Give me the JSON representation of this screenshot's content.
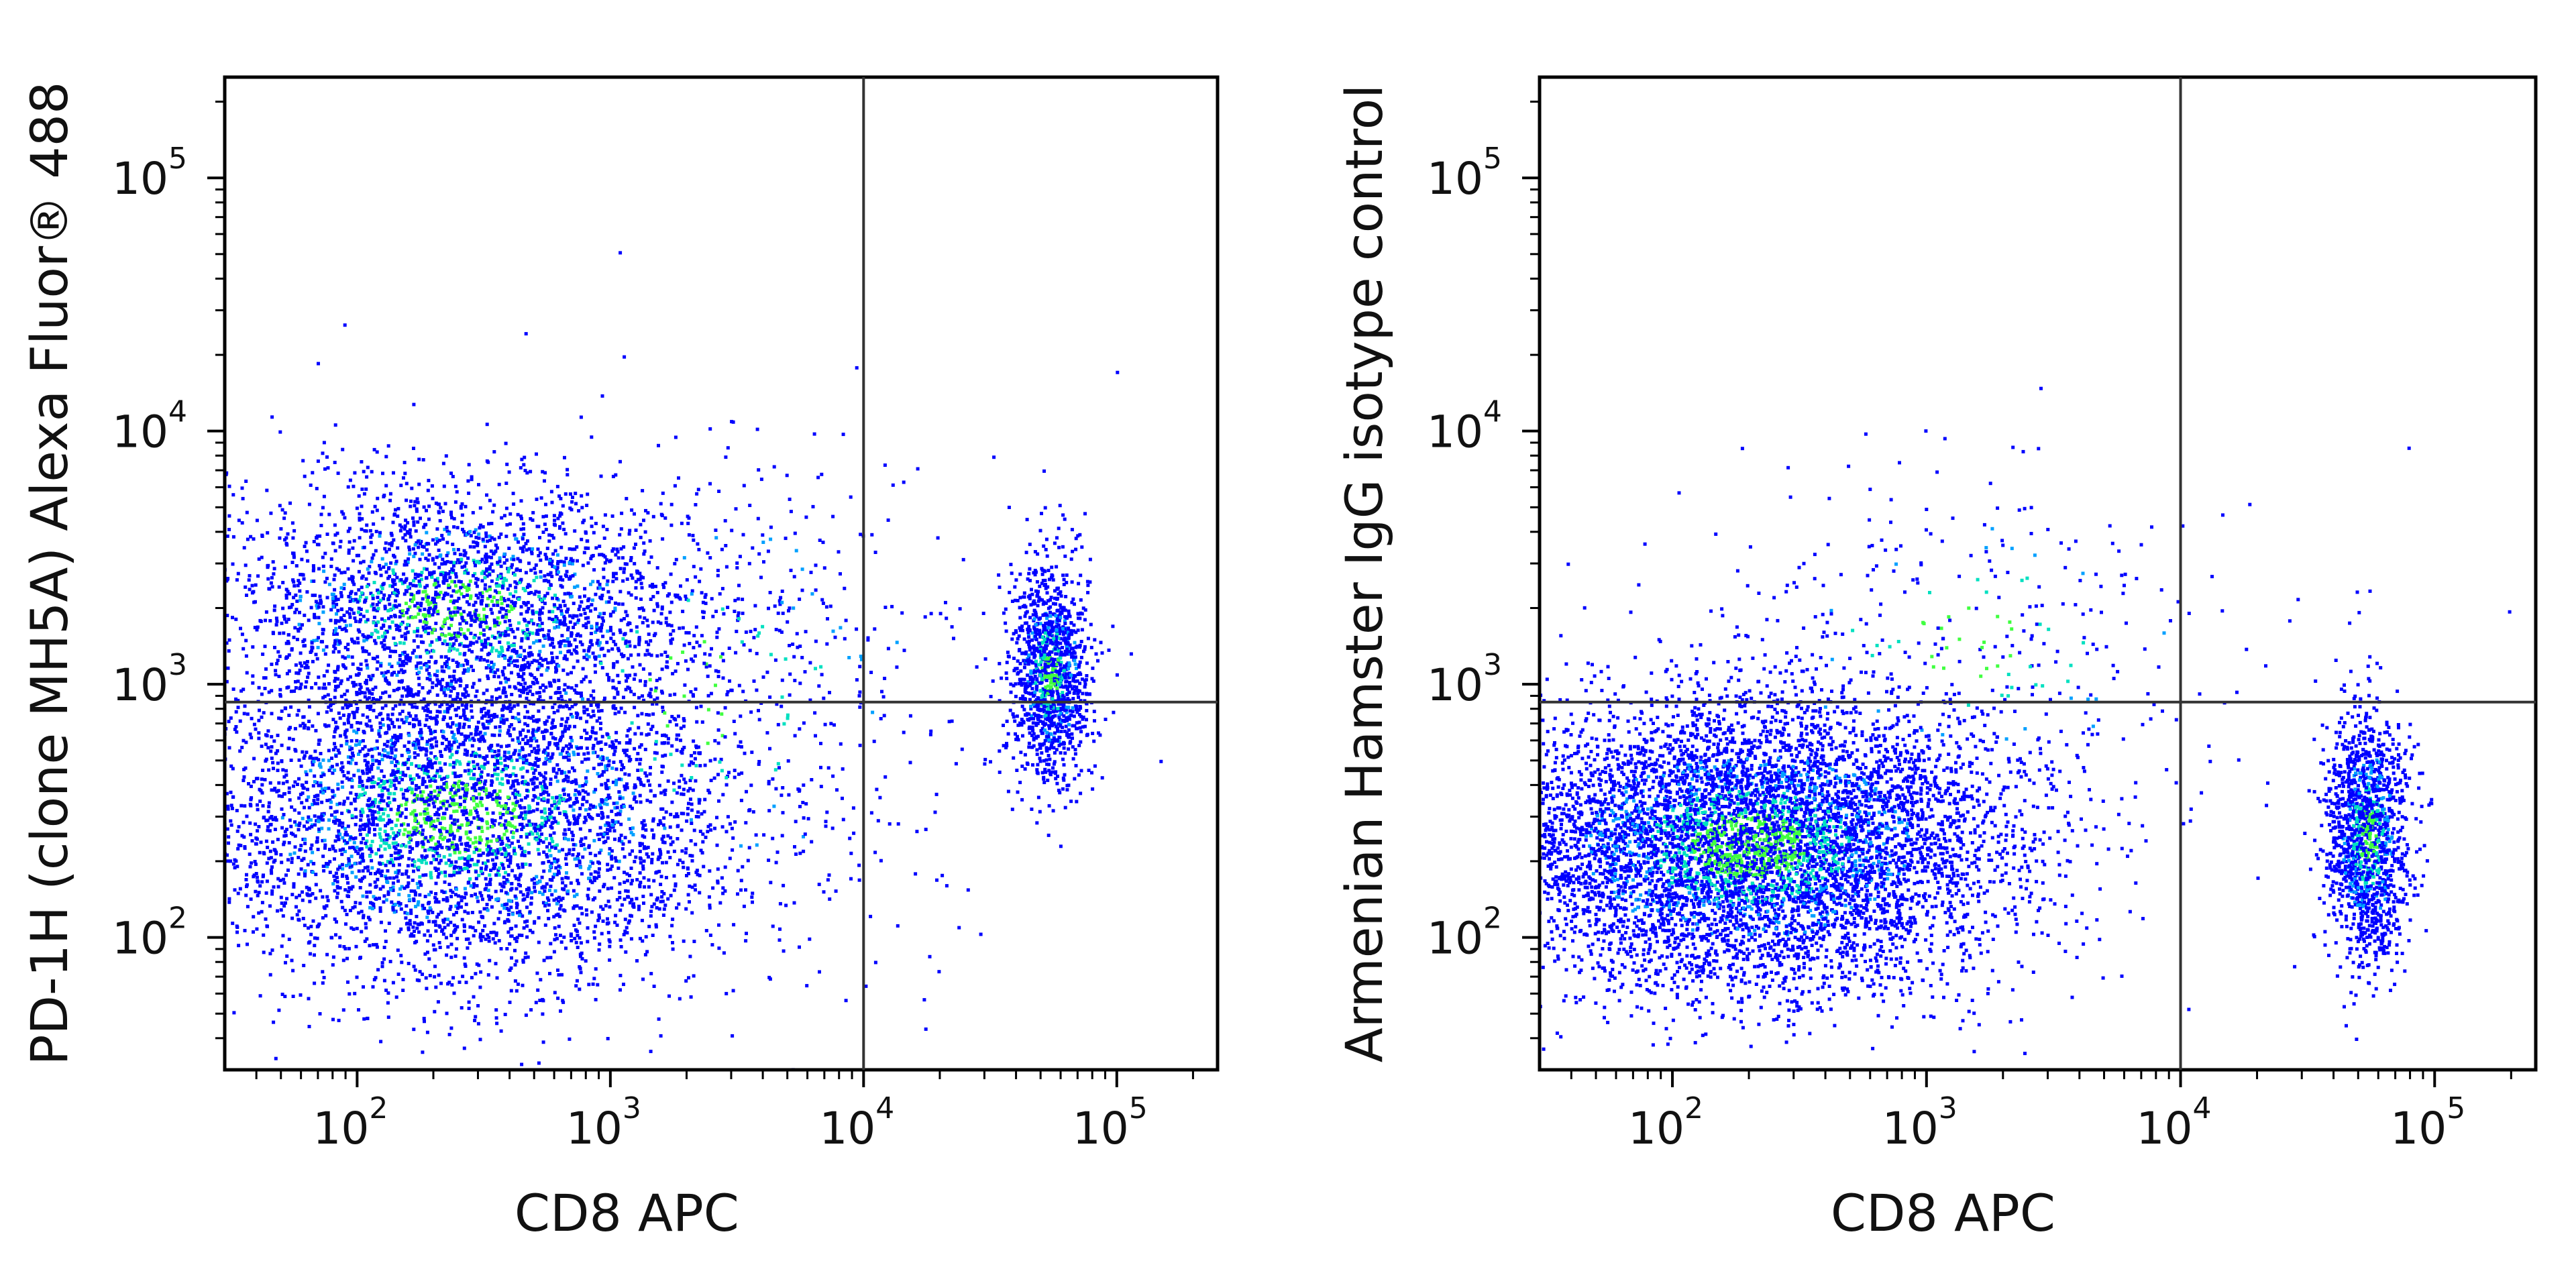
{
  "chart_data": [
    {
      "type": "scatter",
      "subtype": "flow-cytometry-density-dot-plot",
      "xlabel": "CD8 APC",
      "ylabel": "PD-1H (clone MH5A) Alexa Fluor® 488",
      "x_scale": "log",
      "y_scale": "log",
      "xlim": [
        30,
        250000
      ],
      "ylim": [
        30,
        250000
      ],
      "tick_base": "10",
      "x_ticks": [
        {
          "value": 100,
          "exp": "2"
        },
        {
          "value": 1000,
          "exp": "3"
        },
        {
          "value": 10000,
          "exp": "4"
        },
        {
          "value": 100000,
          "exp": "5"
        }
      ],
      "y_ticks": [
        {
          "value": 100,
          "exp": "2"
        },
        {
          "value": 1000,
          "exp": "3"
        },
        {
          "value": 10000,
          "exp": "4"
        },
        {
          "value": 100000,
          "exp": "5"
        }
      ],
      "gate": {
        "x": 10000,
        "y": 850
      },
      "grid": false,
      "legend": "none",
      "density_colors": [
        "#0000ff",
        "#00a0ff",
        "#00e0c0",
        "#40ff40"
      ],
      "populations": [
        {
          "x_center": 250,
          "y_center": 300,
          "x_spread_decades": 0.55,
          "y_spread_decades": 0.32,
          "share": 0.5
        },
        {
          "x_center": 250,
          "y_center": 2000,
          "x_spread_decades": 0.5,
          "y_spread_decades": 0.25,
          "share": 0.3
        },
        {
          "x_center": 55000,
          "y_center": 1100,
          "x_spread_decades": 0.08,
          "y_spread_decades": 0.22,
          "share": 0.14
        },
        {
          "x_center": 2500,
          "y_center": 900,
          "x_spread_decades": 0.6,
          "y_spread_decades": 0.5,
          "share": 0.06
        }
      ],
      "event_count": 9000
    },
    {
      "type": "scatter",
      "subtype": "flow-cytometry-density-dot-plot",
      "xlabel": "CD8 APC",
      "ylabel": "Armenian Hamster IgG isotype control",
      "x_scale": "log",
      "y_scale": "log",
      "xlim": [
        30,
        250000
      ],
      "ylim": [
        30,
        250000
      ],
      "tick_base": "10",
      "x_ticks": [
        {
          "value": 100,
          "exp": "2"
        },
        {
          "value": 1000,
          "exp": "3"
        },
        {
          "value": 10000,
          "exp": "4"
        },
        {
          "value": 100000,
          "exp": "5"
        }
      ],
      "y_ticks": [
        {
          "value": 100,
          "exp": "2"
        },
        {
          "value": 1000,
          "exp": "3"
        },
        {
          "value": 10000,
          "exp": "4"
        },
        {
          "value": 100000,
          "exp": "5"
        }
      ],
      "gate": {
        "x": 10000,
        "y": 850
      },
      "grid": false,
      "legend": "none",
      "density_colors": [
        "#0000ff",
        "#00a0ff",
        "#00e0c0",
        "#40ff40"
      ],
      "populations": [
        {
          "x_center": 200,
          "y_center": 230,
          "x_spread_decades": 0.5,
          "y_spread_decades": 0.28,
          "share": 0.8
        },
        {
          "x_center": 55000,
          "y_center": 250,
          "x_spread_decades": 0.08,
          "y_spread_decades": 0.25,
          "share": 0.16
        },
        {
          "x_center": 1500,
          "y_center": 1500,
          "x_spread_decades": 0.6,
          "y_spread_decades": 0.35,
          "share": 0.04
        }
      ],
      "event_count": 9000
    }
  ]
}
